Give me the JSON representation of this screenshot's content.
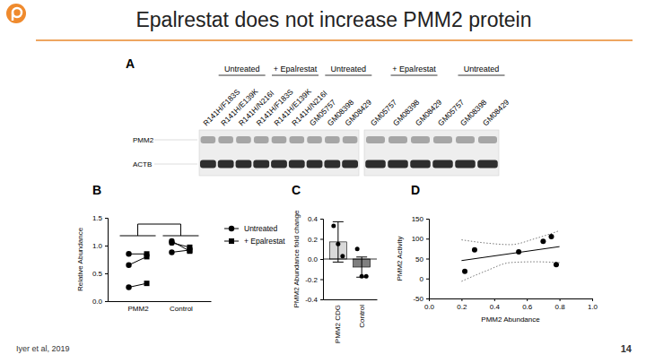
{
  "slide": {
    "title": "Epalrestat does not increase PMM2 protein",
    "citation": "Iyer et al, 2019",
    "page": 14
  },
  "blot": {
    "panel": "A",
    "row_labels": [
      "PMM2",
      "ACTB"
    ],
    "membranes": [
      {
        "groups": [
          {
            "label": "Untreated",
            "lanes": [
              "R141H/F183S",
              "R141H/E139K",
              "R141H/N216I"
            ]
          },
          {
            "label": "+ Epalrestat",
            "lanes": [
              "R141H/F183S",
              "R141H/E139K",
              "R141H/N216I"
            ]
          },
          {
            "label": "Untreated",
            "lanes": [
              "GM05757",
              "GM08398",
              "GM08429"
            ]
          }
        ]
      },
      {
        "groups": [
          {
            "label": "+ Epalrestat",
            "lanes": [
              "GM05757",
              "GM08398",
              "GM08429"
            ]
          },
          {
            "label": "Untreated",
            "lanes": [
              "GM05757",
              "GM08398",
              "GM08429"
            ]
          }
        ]
      }
    ]
  },
  "chart_data": [
    {
      "panel": "B",
      "type": "line",
      "categories": [
        "PMM2",
        "Control"
      ],
      "ylabel": "Relative Abundance",
      "ylim": [
        0,
        1.5
      ],
      "yticks": [
        {
          "value": 0,
          "label": "0.0"
        },
        {
          "value": 0.5,
          "label": "0.5"
        },
        {
          "value": 1,
          "label": "1.0"
        },
        {
          "value": 1.5,
          "label": "1.5"
        }
      ],
      "legend": "right",
      "series": [
        {
          "name": "Untreated",
          "marker": "circle",
          "color": "#000000",
          "values": [
            [
              0.65,
              0.85,
              0.25
            ],
            [
              1.05,
              1.08,
              0.88
            ]
          ]
        },
        {
          "name": "+ Epalrestat",
          "marker": "square",
          "color": "#000000",
          "values": [
            [
              0.8,
              0.85,
              0.32
            ],
            [
              0.97,
              0.9,
              0.92
            ]
          ]
        }
      ]
    },
    {
      "panel": "C",
      "type": "bar",
      "categories": [
        "PMM2 CDG",
        "Control"
      ],
      "ylabel": "PMM2 Abundance fold change",
      "values": [
        0.17,
        -0.08
      ],
      "errors": [
        0.2,
        0.1
      ],
      "points": [
        [
          0.33,
          0.15,
          0.03
        ],
        [
          0.1,
          -0.17,
          -0.17
        ]
      ],
      "colors": [
        "#d9d9d9",
        "#7f7f7f"
      ],
      "ylim": [
        -0.4,
        0.4
      ],
      "yticks": [
        -0.4,
        -0.2,
        {
          "value": 0,
          "label": "0.0"
        },
        0.2,
        0.4
      ]
    },
    {
      "panel": "D",
      "type": "scatter",
      "xlabel": "PMM2 Abundance",
      "ylabel": "PMM2 Activity",
      "color": "#000000",
      "x": [
        0.22,
        0.28,
        0.55,
        0.7,
        0.75,
        0.78
      ],
      "values": [
        18,
        72,
        67,
        93,
        105,
        35
      ],
      "xlim": [
        0,
        1
      ],
      "xticks": [
        {
          "value": 0,
          "label": "0.0"
        },
        0.2,
        0.4,
        0.6,
        0.8,
        {
          "value": 1,
          "label": "1.0"
        }
      ],
      "ylim": [
        -50,
        150
      ],
      "yticks": [
        -50,
        0,
        50,
        100,
        150
      ],
      "fit": {
        "line_style": "solid",
        "x": [
          0.2,
          0.8
        ],
        "values": [
          45,
          80
        ]
      },
      "fit_ci": {
        "line_style": "dotted",
        "x": [
          0.2,
          0.35,
          0.5,
          0.65,
          0.8
        ],
        "upper": [
          97,
          89,
          85,
          100,
          120
        ],
        "lower": [
          -7,
          19,
          40,
          42,
          40
        ]
      }
    }
  ]
}
